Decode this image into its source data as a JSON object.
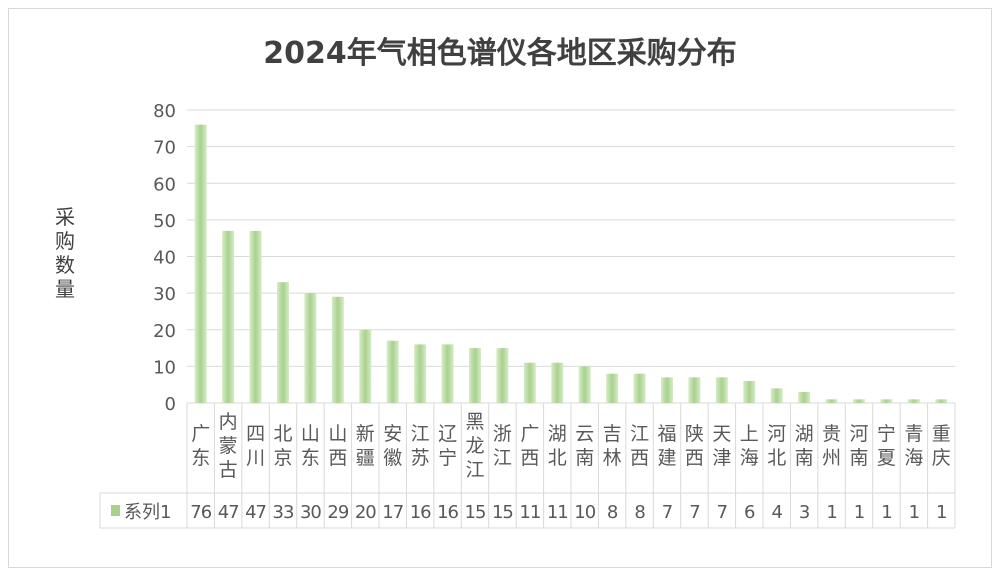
{
  "chart_data": {
    "type": "bar",
    "title": "2024年气相色谱仪各地区采购分布",
    "xlabel": "",
    "ylabel": "采购数量",
    "ylim": [
      0,
      80
    ],
    "yticks": [
      0,
      10,
      20,
      30,
      40,
      50,
      60,
      70,
      80
    ],
    "grid": true,
    "legend": "data-table-left",
    "data_table": true,
    "categories": [
      "广东",
      "内蒙古",
      "四川",
      "北京",
      "山东",
      "山西",
      "新疆",
      "安徽",
      "江苏",
      "辽宁",
      "黑龙江",
      "浙江",
      "广西",
      "湖北",
      "云南",
      "吉林",
      "江西",
      "福建",
      "陕西",
      "天津",
      "上海",
      "河北",
      "湖南",
      "贵州",
      "河南",
      "宁夏",
      "青海",
      "重庆"
    ],
    "series": [
      {
        "name": "系列1",
        "color": "#a9d18e",
        "values": [
          76,
          47,
          47,
          33,
          30,
          29,
          20,
          17,
          16,
          16,
          15,
          15,
          11,
          11,
          10,
          8,
          8,
          7,
          7,
          7,
          6,
          4,
          3,
          1,
          1,
          1,
          1,
          1
        ]
      }
    ]
  }
}
